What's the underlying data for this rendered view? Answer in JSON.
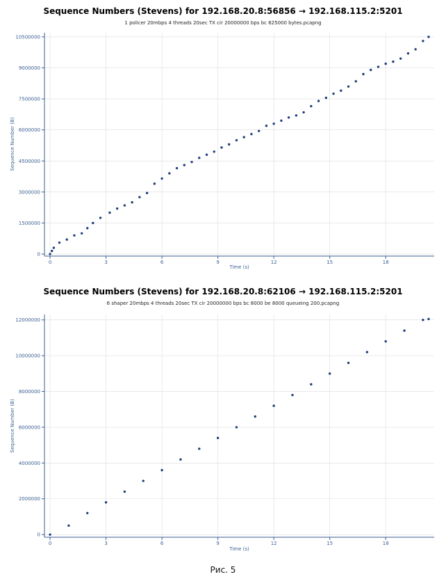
{
  "colors": {
    "points": "#1f3f7a",
    "axis": "#3a5f92",
    "grid": "#dcdcdc"
  },
  "caption": "Рис. 5",
  "chart_data": [
    {
      "type": "scatter",
      "title": "Sequence Numbers (Stevens) for 192.168.20.8:56856 → 192.168.115.2:5201",
      "subtitle": "1 policer 20mbps 4 threads 20sec TX cir 20000000 bps bc 625000 bytes.pcapng",
      "xlabel": "Time (s)",
      "ylabel": "Sequence Number (B)",
      "xlim": [
        -0.3,
        20.6
      ],
      "ylim": [
        -100000,
        10700000
      ],
      "xticks": [
        0,
        3,
        6,
        9,
        12,
        15,
        18
      ],
      "yticks": [
        0,
        1500000,
        3000000,
        4500000,
        6000000,
        7500000,
        9000000,
        10500000
      ],
      "xtick_labels": [
        "0",
        "3",
        "6",
        "9",
        "12",
        "15",
        "18"
      ],
      "ytick_labels": [
        "0",
        "1500000",
        "3000000",
        "4500000",
        "6000000",
        "7500000",
        "9000000",
        "10500000"
      ],
      "grid": true,
      "series": [
        {
          "x": [
            0.0,
            0.1,
            0.2,
            0.5,
            0.9,
            1.3,
            1.7,
            2.0,
            2.3,
            2.7,
            3.2,
            3.6,
            4.0,
            4.4,
            4.8,
            5.2,
            5.6,
            6.0,
            6.4,
            6.8,
            7.2,
            7.6,
            8.0,
            8.4,
            8.8,
            9.2,
            9.6,
            10.0,
            10.4,
            10.8,
            11.2,
            11.6,
            12.0,
            12.4,
            12.8,
            13.2,
            13.6,
            14.0,
            14.4,
            14.8,
            15.2,
            15.6,
            16.0,
            16.4,
            16.8,
            17.2,
            17.6,
            18.0,
            18.4,
            18.8,
            19.2,
            19.6,
            20.0,
            20.3
          ],
          "y": [
            0,
            150000,
            300000,
            550000,
            700000,
            900000,
            1000000,
            1250000,
            1500000,
            1750000,
            2000000,
            2200000,
            2350000,
            2500000,
            2750000,
            2950000,
            3400000,
            3650000,
            3900000,
            4150000,
            4300000,
            4450000,
            4650000,
            4800000,
            4950000,
            5150000,
            5300000,
            5500000,
            5650000,
            5800000,
            5950000,
            6200000,
            6300000,
            6450000,
            6600000,
            6700000,
            6850000,
            7150000,
            7400000,
            7550000,
            7750000,
            7900000,
            8100000,
            8350000,
            8700000,
            8900000,
            9050000,
            9200000,
            9300000,
            9450000,
            9700000,
            9900000,
            10300000,
            10500000
          ]
        }
      ]
    },
    {
      "type": "scatter",
      "title": "Sequence Numbers (Stevens) for 192.168.20.8:62106 → 192.168.115.2:5201",
      "subtitle": "6 shaper 20mbps 4 threads 20sec TX cir 20000000 bps bc 8000 be 8000 queueing 200.pcapng",
      "xlabel": "Time (s)",
      "ylabel": "Sequence Number (B)",
      "xlim": [
        -0.3,
        20.6
      ],
      "ylim": [
        -150000,
        12300000
      ],
      "xticks": [
        0,
        3,
        6,
        9,
        12,
        15,
        18
      ],
      "yticks": [
        0,
        2000000,
        4000000,
        6000000,
        8000000,
        10000000,
        12000000
      ],
      "xtick_labels": [
        "0",
        "3",
        "6",
        "9",
        "12",
        "15",
        "18"
      ],
      "ytick_labels": [
        "0",
        "2000000",
        "4000000",
        "6000000",
        "8000000",
        "10000000",
        "12000000"
      ],
      "grid": true,
      "series": [
        {
          "x": [
            0,
            1,
            2,
            3,
            4,
            5,
            6,
            7,
            8,
            9,
            10,
            11,
            12,
            13,
            14,
            15,
            16,
            17,
            18,
            19,
            20,
            20.3
          ],
          "y": [
            0,
            500000,
            1200000,
            1800000,
            2400000,
            3000000,
            3600000,
            4200000,
            4800000,
            5400000,
            6000000,
            6600000,
            7200000,
            7800000,
            8400000,
            9000000,
            9600000,
            10200000,
            10800000,
            11400000,
            12000000,
            12050000
          ]
        }
      ]
    }
  ]
}
